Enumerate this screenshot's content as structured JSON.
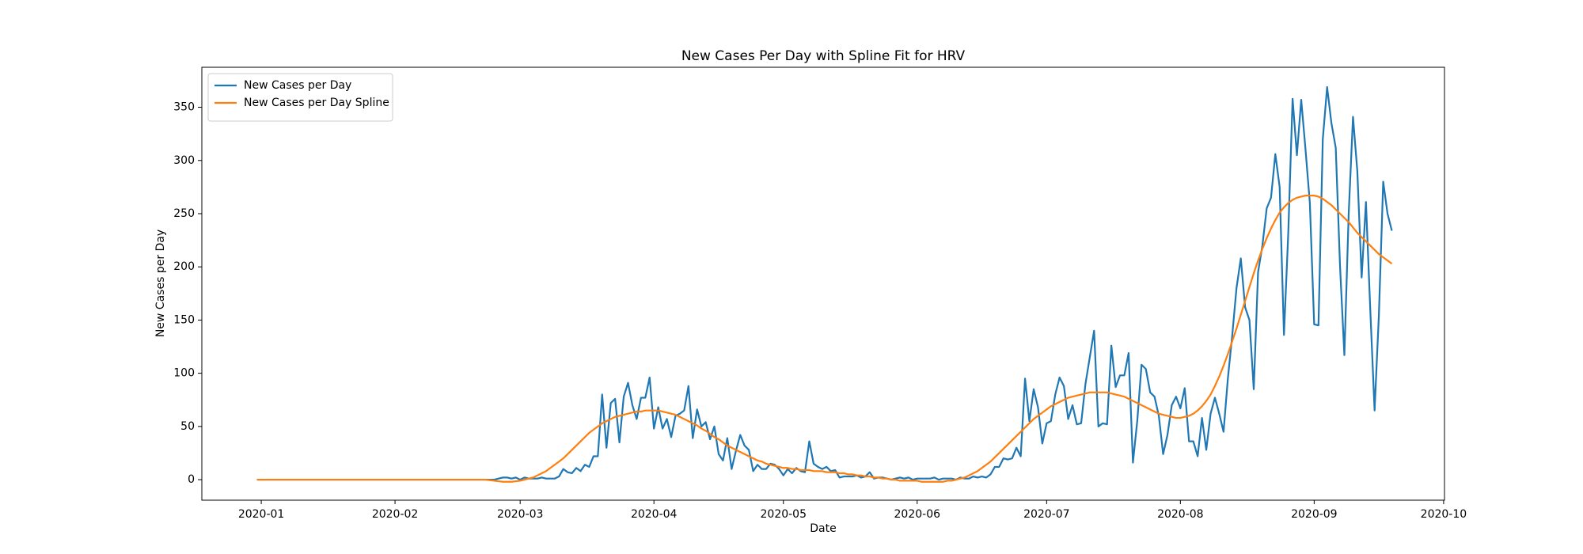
{
  "chart_data": {
    "type": "line",
    "title": "New Cases Per Day with Spline Fit for HRV",
    "x_label": "Date",
    "y_label": "New Cases per Day",
    "series": [
      {
        "name": "New Cases per Day",
        "color": "#1f77b4",
        "values": [
          0,
          0,
          0,
          0,
          0,
          0,
          0,
          0,
          0,
          0,
          0,
          0,
          0,
          0,
          0,
          0,
          0,
          0,
          0,
          0,
          0,
          0,
          0,
          0,
          0,
          0,
          0,
          0,
          0,
          0,
          0,
          0,
          0,
          0,
          0,
          0,
          0,
          0,
          0,
          0,
          0,
          0,
          0,
          0,
          0,
          0,
          0,
          0,
          0,
          0,
          0,
          0,
          0,
          0,
          0,
          0,
          1,
          2,
          2,
          1,
          2,
          0,
          2,
          1,
          1,
          1,
          2,
          1,
          1,
          1,
          3,
          10,
          7,
          6,
          11,
          8,
          14,
          12,
          22,
          22,
          80,
          30,
          72,
          76,
          35,
          78,
          91,
          70,
          57,
          77,
          77,
          96,
          48,
          68,
          48,
          57,
          40,
          60,
          62,
          65,
          88,
          39,
          66,
          50,
          54,
          38,
          50,
          24,
          18,
          39,
          10,
          27,
          42,
          32,
          28,
          8,
          14,
          10,
          10,
          15,
          14,
          10,
          4,
          10,
          6,
          11,
          8,
          7,
          36,
          15,
          12,
          10,
          12,
          8,
          9,
          2,
          3,
          3,
          3,
          4,
          2,
          3,
          7,
          1,
          2,
          2,
          1,
          0,
          1,
          2,
          1,
          2,
          0,
          1,
          1,
          1,
          1,
          2,
          0,
          1,
          1,
          1,
          0,
          2,
          1,
          1,
          3,
          2,
          3,
          2,
          5,
          12,
          12,
          20,
          19,
          20,
          30,
          22,
          95,
          55,
          85,
          68,
          34,
          53,
          55,
          80,
          96,
          88,
          57,
          70,
          52,
          53,
          90,
          115,
          140,
          50,
          53,
          52,
          126,
          87,
          98,
          98,
          119,
          16,
          55,
          108,
          104,
          82,
          78,
          60,
          24,
          42,
          70,
          78,
          67,
          86,
          36,
          36,
          22,
          58,
          28,
          62,
          77,
          62,
          45,
          95,
          135,
          180,
          208,
          162,
          150,
          85,
          195,
          220,
          255,
          265,
          306,
          275,
          136,
          232,
          358,
          305,
          357,
          310,
          260,
          146,
          145,
          320,
          369,
          335,
          312,
          200,
          117,
          250,
          341,
          290,
          190,
          261,
          160,
          65,
          155,
          280,
          250,
          234
        ]
      },
      {
        "name": "New Cases per Day Spline",
        "color": "#ff7f0e",
        "values": [
          0,
          0,
          0,
          0,
          0,
          0,
          0,
          0,
          0,
          0,
          0,
          0,
          0,
          0,
          0,
          0,
          0,
          0,
          0,
          0,
          0,
          0,
          0,
          0,
          0,
          0,
          0,
          0,
          0,
          0,
          0,
          0,
          0,
          0,
          0,
          0,
          0,
          0,
          0,
          0,
          0,
          0,
          0,
          0,
          0,
          0,
          0,
          0,
          0,
          0,
          0,
          0,
          0,
          0,
          -0.5,
          -1,
          -1.5,
          -2,
          -2,
          -2,
          -1.5,
          -1,
          0,
          1,
          2,
          4,
          6,
          8,
          11,
          14,
          17,
          20,
          24,
          28,
          32,
          36,
          40,
          44,
          47,
          50,
          53,
          55,
          57,
          59,
          60,
          61,
          62,
          63,
          64,
          64,
          65,
          65,
          65,
          65,
          64,
          63,
          62,
          61,
          59,
          57,
          55,
          53,
          51,
          48,
          46,
          43,
          40,
          38,
          35,
          32,
          30,
          28,
          26,
          24,
          22,
          20,
          18,
          17,
          15,
          14,
          13,
          12,
          11,
          11,
          10,
          10,
          9,
          9,
          9,
          8,
          8,
          8,
          7,
          7,
          7,
          6,
          6,
          5,
          5,
          4,
          4,
          3,
          3,
          2,
          2,
          1,
          1,
          0,
          0,
          -1,
          -1,
          -1,
          -1,
          -1,
          -2,
          -2,
          -2,
          -2,
          -2,
          -2,
          -1,
          -1,
          0,
          1,
          2,
          4,
          6,
          8,
          11,
          14,
          17,
          21,
          25,
          29,
          33,
          37,
          41,
          45,
          49,
          53,
          57,
          60,
          63,
          66,
          69,
          71,
          73,
          75,
          77,
          78,
          79,
          80,
          81,
          82,
          82,
          82,
          82,
          82,
          81,
          80,
          79,
          78,
          76,
          74,
          72,
          70,
          68,
          66,
          64,
          62,
          61,
          60,
          59,
          58,
          58,
          59,
          60,
          62,
          65,
          69,
          74,
          80,
          88,
          97,
          107,
          118,
          130,
          142,
          155,
          168,
          181,
          194,
          206,
          217,
          227,
          236,
          244,
          251,
          256,
          260,
          263,
          265,
          266,
          267,
          267,
          267,
          266,
          264,
          261,
          258,
          254,
          250,
          246,
          242,
          237,
          232,
          228,
          224,
          220,
          216,
          212,
          209,
          206,
          203
        ]
      }
    ],
    "xlim": [
      -12.77,
      275.2
    ],
    "xticks": [
      {
        "value": 1,
        "label": "2020-01"
      },
      {
        "value": 32,
        "label": "2020-02"
      },
      {
        "value": 61,
        "label": "2020-03"
      },
      {
        "value": 92,
        "label": "2020-04"
      },
      {
        "value": 122,
        "label": "2020-05"
      },
      {
        "value": 153,
        "label": "2020-06"
      },
      {
        "value": 183,
        "label": "2020-07"
      },
      {
        "value": 214,
        "label": "2020-08"
      },
      {
        "value": 245,
        "label": "2020-09"
      },
      {
        "value": 275,
        "label": "2020-10"
      }
    ],
    "ylim": [
      -19.3,
      387.6
    ],
    "yticks": [
      0,
      50,
      100,
      150,
      200,
      250,
      300,
      350
    ],
    "grid": false,
    "legend": "upper left"
  }
}
